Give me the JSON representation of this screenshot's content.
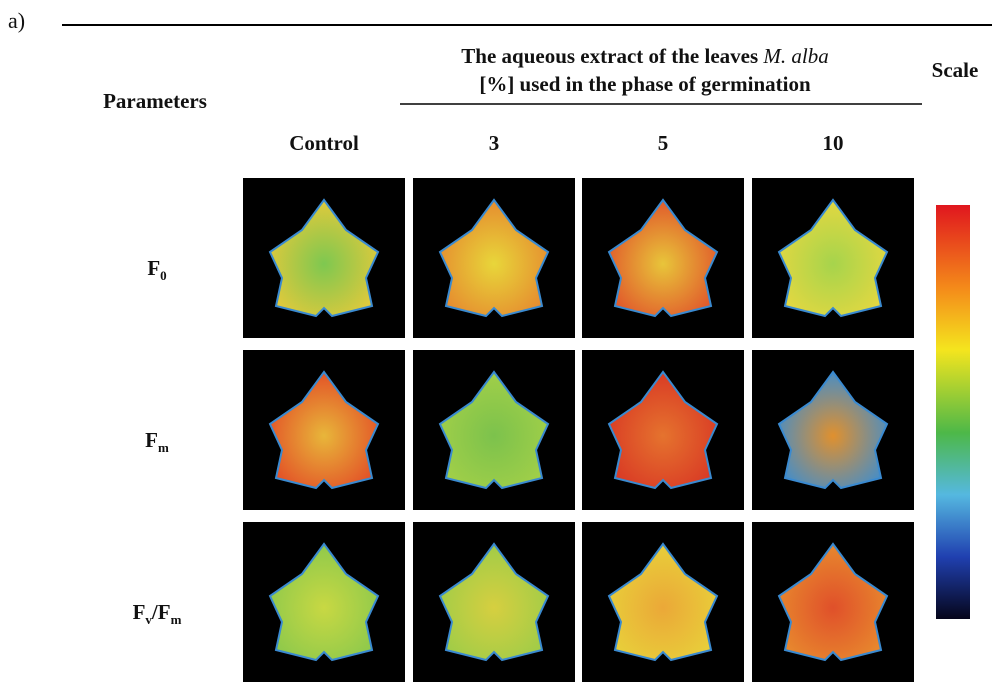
{
  "panel_label": "a)",
  "table": {
    "row_header": "Parameters",
    "group_header": [
      "The aqueous extract of the leaves ",
      "M. alba",
      "[%] used in the phase of germination"
    ],
    "scale_header": "Scale",
    "columns": [
      "Control",
      "3",
      "5",
      "10"
    ],
    "rows": [
      [
        "F",
        "0"
      ],
      [
        "F",
        "m"
      ],
      [
        "F",
        "v",
        "/F",
        "m"
      ]
    ]
  }
}
